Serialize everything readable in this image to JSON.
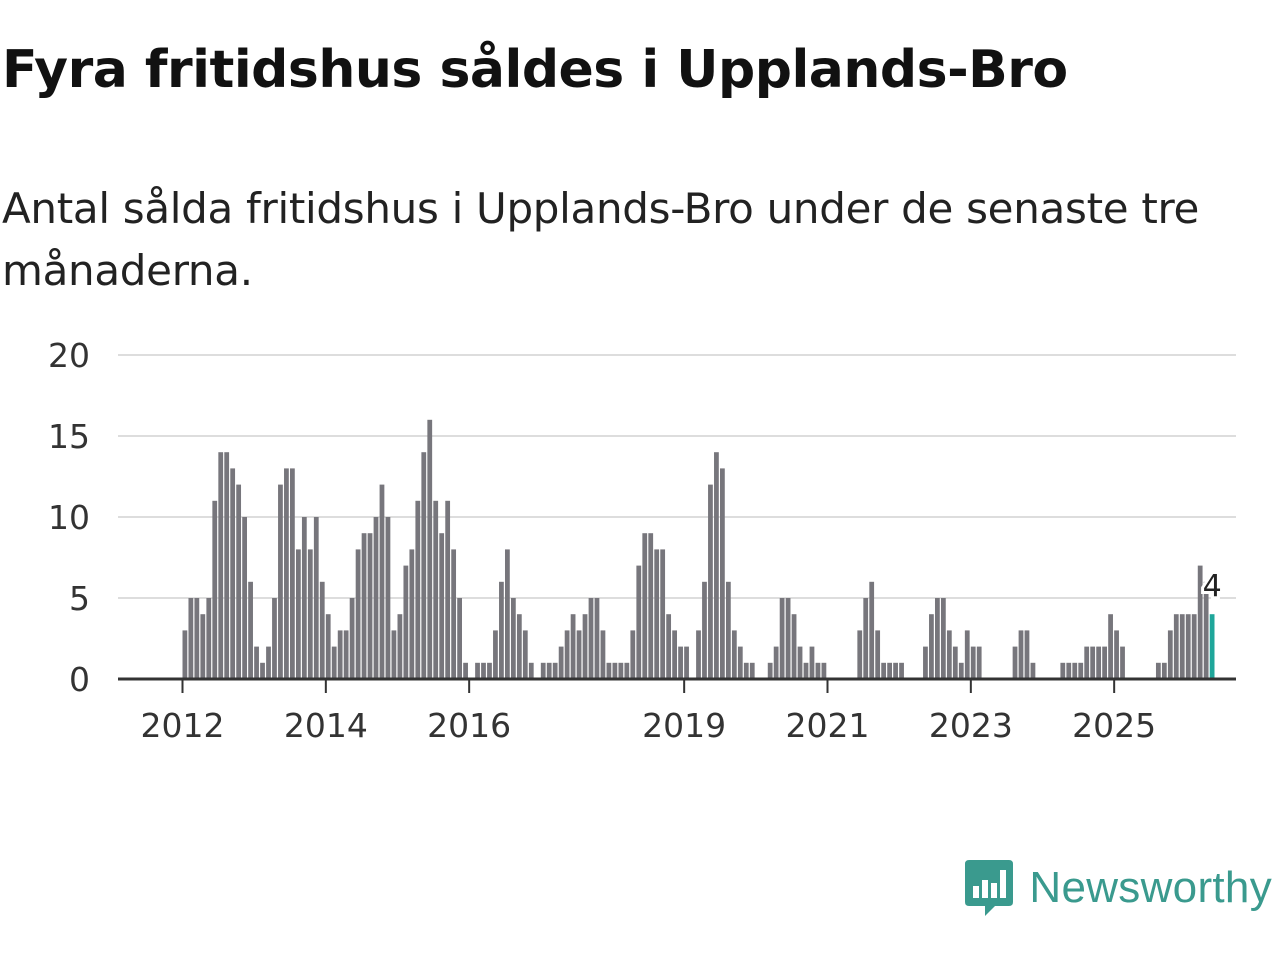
{
  "title": "Fyra fritidshus såldes i Upplands-Bro",
  "subtitle": "Antal sålda fritidshus i Upplands-Bro under de senaste tre månaderna.",
  "brand": {
    "name": "Newsworthy",
    "color": "#3a9a8e"
  },
  "colors": {
    "bar": "#77767c",
    "highlight": "#1fa69a",
    "grid": "#dddddd",
    "axis": "#333333",
    "text": "#333333"
  },
  "chart_data": {
    "type": "bar",
    "title": "Fyra fritidshus såldes i Upplands-Bro",
    "ylabel": "",
    "xlabel": "",
    "ylim": [
      0,
      20
    ],
    "yticks": [
      0,
      5,
      10,
      15,
      20
    ],
    "xlim": [
      2011.1,
      2026.7
    ],
    "xticks": [
      {
        "value": 2012,
        "label": "2012"
      },
      {
        "value": 2014,
        "label": "2014"
      },
      {
        "value": 2016,
        "label": "2016"
      },
      {
        "value": 2019,
        "label": "2019"
      },
      {
        "value": 2021,
        "label": "2021"
      },
      {
        "value": 2023,
        "label": "2023"
      },
      {
        "value": 2025,
        "label": "2025"
      }
    ],
    "start": {
      "year": 2012,
      "month": 1
    },
    "values": [
      3,
      5,
      5,
      4,
      5,
      11,
      14,
      14,
      13,
      12,
      10,
      6,
      2,
      1,
      2,
      5,
      12,
      13,
      13,
      8,
      10,
      8,
      10,
      6,
      4,
      2,
      3,
      3,
      5,
      8,
      9,
      9,
      10,
      12,
      10,
      3,
      4,
      7,
      8,
      11,
      14,
      16,
      11,
      9,
      11,
      8,
      5,
      1,
      0,
      1,
      1,
      1,
      3,
      6,
      8,
      5,
      4,
      3,
      1,
      0,
      1,
      1,
      1,
      2,
      3,
      4,
      3,
      4,
      5,
      5,
      3,
      1,
      1,
      1,
      1,
      3,
      7,
      9,
      9,
      8,
      8,
      4,
      3,
      2,
      2,
      0,
      3,
      6,
      12,
      14,
      13,
      6,
      3,
      2,
      1,
      1,
      0,
      0,
      1,
      2,
      5,
      5,
      4,
      2,
      1,
      2,
      1,
      1,
      0,
      0,
      0,
      0,
      0,
      3,
      5,
      6,
      3,
      1,
      1,
      1,
      1,
      0,
      0,
      0,
      2,
      4,
      5,
      5,
      3,
      2,
      1,
      3,
      2,
      2,
      0,
      0,
      0,
      0,
      0,
      2,
      3,
      3,
      1,
      0,
      0,
      0,
      0,
      1,
      1,
      1,
      1,
      2,
      2,
      2,
      2,
      4,
      3,
      2,
      0,
      0,
      0,
      0,
      0,
      1,
      1,
      3,
      4,
      4,
      4,
      4,
      7,
      6,
      4
    ],
    "highlight_last": true,
    "annotation": {
      "label": "4",
      "index": "last"
    }
  }
}
